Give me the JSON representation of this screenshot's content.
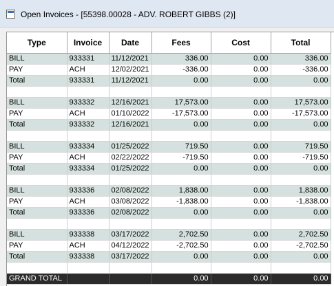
{
  "window": {
    "title": "Open Invoices - [55398.00028 - ADV. ROBERT GIBBS (2)]"
  },
  "grid": {
    "columns": [
      "Type",
      "Invoice",
      "Date",
      "Fees",
      "Cost",
      "Total"
    ],
    "rows": [
      {
        "kind": "bill",
        "cells": [
          "BILL",
          "933331",
          "11/12/2021",
          "336.00",
          "0.00",
          "336.00"
        ]
      },
      {
        "kind": "pay",
        "cells": [
          "PAY",
          "ACH",
          "12/02/2021",
          "-336.00",
          "0.00",
          "-336.00"
        ]
      },
      {
        "kind": "total",
        "cells": [
          "Total",
          "933331",
          "11/12/2021",
          "0.00",
          "0.00",
          "0.00"
        ]
      },
      {
        "kind": "blank",
        "cells": [
          "",
          "",
          "",
          "",
          "",
          ""
        ]
      },
      {
        "kind": "bill",
        "cells": [
          "BILL",
          "933332",
          "12/16/2021",
          "17,573.00",
          "0.00",
          "17,573.00"
        ]
      },
      {
        "kind": "pay",
        "cells": [
          "PAY",
          "ACH",
          "01/10/2022",
          "-17,573.00",
          "0.00",
          "-17,573.00"
        ]
      },
      {
        "kind": "total",
        "cells": [
          "Total",
          "933332",
          "12/16/2021",
          "0.00",
          "0.00",
          "0.00"
        ]
      },
      {
        "kind": "blank",
        "cells": [
          "",
          "",
          "",
          "",
          "",
          ""
        ]
      },
      {
        "kind": "bill",
        "cells": [
          "BILL",
          "933334",
          "01/25/2022",
          "719.50",
          "0.00",
          "719.50"
        ]
      },
      {
        "kind": "pay",
        "cells": [
          "PAY",
          "ACH",
          "02/22/2022",
          "-719.50",
          "0.00",
          "-719.50"
        ]
      },
      {
        "kind": "total",
        "cells": [
          "Total",
          "933334",
          "01/25/2022",
          "0.00",
          "0.00",
          "0.00"
        ]
      },
      {
        "kind": "blank",
        "cells": [
          "",
          "",
          "",
          "",
          "",
          ""
        ]
      },
      {
        "kind": "bill",
        "cells": [
          "BILL",
          "933336",
          "02/08/2022",
          "1,838.00",
          "0.00",
          "1,838.00"
        ]
      },
      {
        "kind": "pay",
        "cells": [
          "PAY",
          "ACH",
          "03/08/2022",
          "-1,838.00",
          "0.00",
          "-1,838.00"
        ]
      },
      {
        "kind": "total",
        "cells": [
          "Total",
          "933336",
          "02/08/2022",
          "0.00",
          "0.00",
          "0.00"
        ]
      },
      {
        "kind": "blank",
        "cells": [
          "",
          "",
          "",
          "",
          "",
          ""
        ]
      },
      {
        "kind": "bill",
        "cells": [
          "BILL",
          "933338",
          "03/17/2022",
          "2,702.50",
          "0.00",
          "2,702.50"
        ]
      },
      {
        "kind": "pay",
        "cells": [
          "PAY",
          "ACH",
          "04/12/2022",
          "-2,702.50",
          "0.00",
          "-2,702.50"
        ]
      },
      {
        "kind": "total",
        "cells": [
          "Total",
          "933338",
          "03/17/2022",
          "0.00",
          "0.00",
          "0.00"
        ]
      },
      {
        "kind": "blank",
        "cells": [
          "",
          "",
          "",
          "",
          "",
          ""
        ]
      },
      {
        "kind": "grand",
        "cells": [
          "GRAND TOTAL",
          "",
          "",
          "0.00",
          "0.00",
          "0.00"
        ]
      }
    ]
  },
  "colors": {
    "row_band": "#d5e1de",
    "grand_total_bg": "#2b2b2b",
    "titlebar_bg": "#dfe7f2"
  }
}
